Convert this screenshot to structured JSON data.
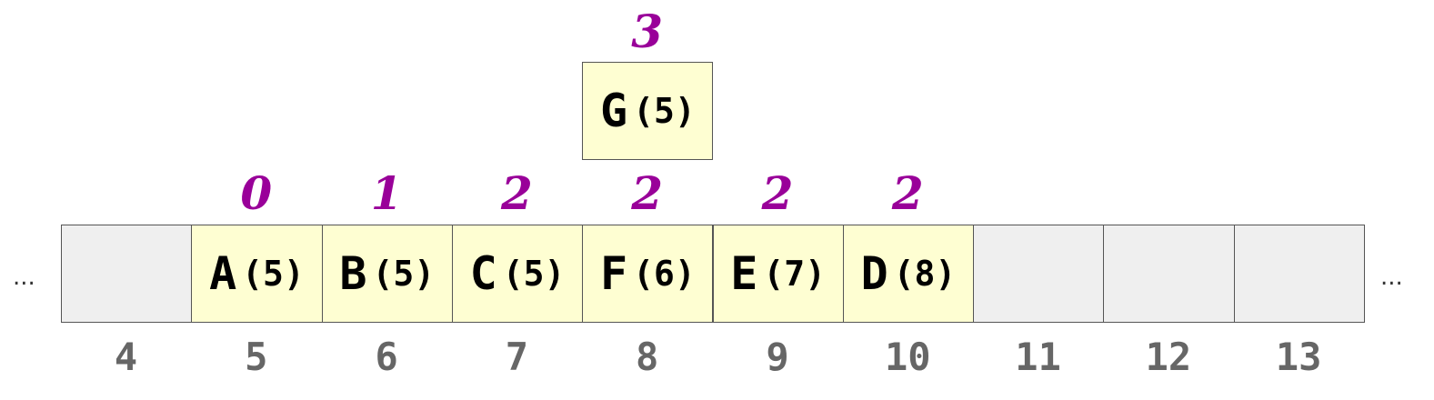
{
  "colors": {
    "level": "#990099",
    "index": "#666666",
    "filled_cell": "#fefed2",
    "empty_cell": "#efefef",
    "border": "#555555"
  },
  "ellipsis_left": "...",
  "ellipsis_right": "...",
  "array_cells": [
    {
      "index": "4",
      "letter": "",
      "count": "",
      "level": ""
    },
    {
      "index": "5",
      "letter": "A",
      "count": "(5)",
      "level": "0"
    },
    {
      "index": "6",
      "letter": "B",
      "count": "(5)",
      "level": "1"
    },
    {
      "index": "7",
      "letter": "C",
      "count": "(5)",
      "level": "2"
    },
    {
      "index": "8",
      "letter": "F",
      "count": "(6)",
      "level": "2"
    },
    {
      "index": "9",
      "letter": "E",
      "count": "(7)",
      "level": "2"
    },
    {
      "index": "10",
      "letter": "D",
      "count": "(8)",
      "level": "2"
    },
    {
      "index": "11",
      "letter": "",
      "count": "",
      "level": ""
    },
    {
      "index": "12",
      "letter": "",
      "count": "",
      "level": ""
    },
    {
      "index": "13",
      "letter": "",
      "count": "",
      "level": ""
    }
  ],
  "floating_cell": {
    "letter": "G",
    "count": "(5)",
    "level": "3",
    "above_index": "8"
  }
}
